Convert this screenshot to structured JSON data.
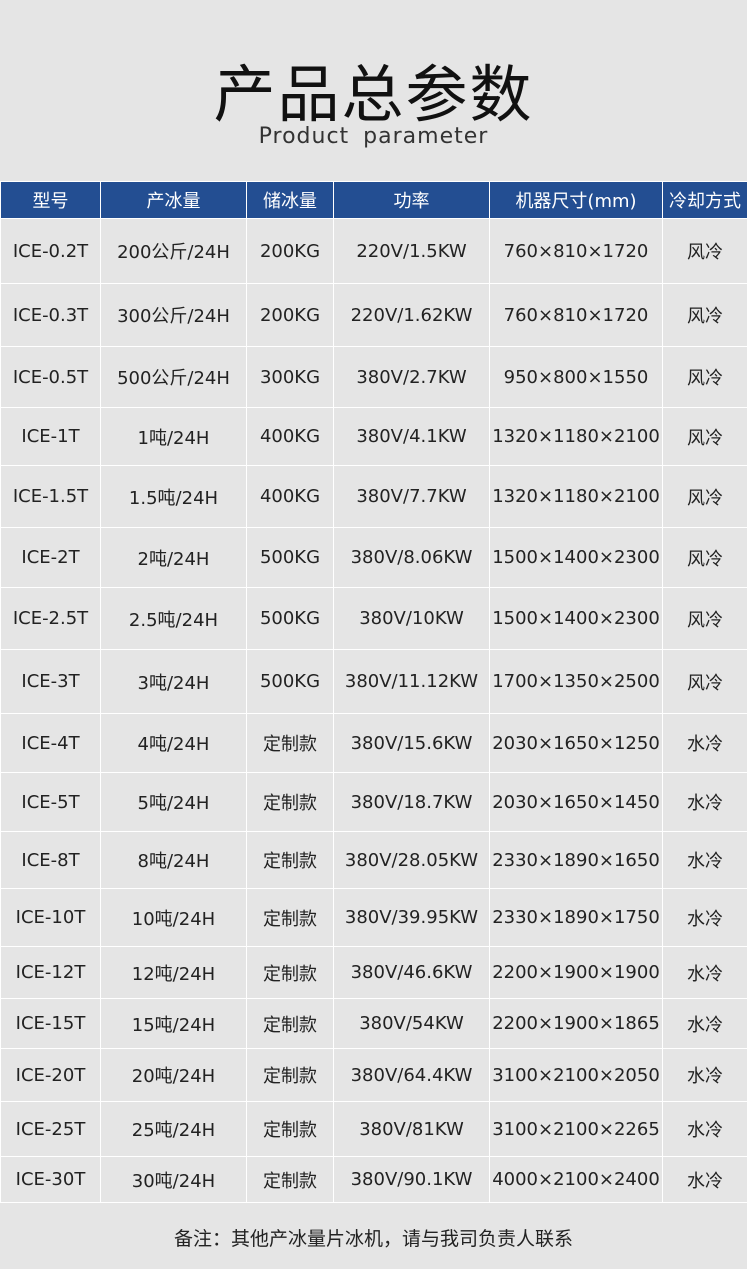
{
  "title": "产品总参数",
  "subtitle": "Product  parameter",
  "colors": {
    "header_bg": "#234e92",
    "page_bg": "#e5e5e5"
  },
  "headers": [
    "型号",
    "产冰量",
    "储冰量",
    "功率",
    "机器尺寸(mm)",
    "冷却方式"
  ],
  "rows": [
    [
      "ICE-0.2T",
      "200公斤/24H",
      "200KG",
      "220V/1.5KW",
      "760×810×1720",
      "风冷"
    ],
    [
      "ICE-0.3T",
      "300公斤/24H",
      "200KG",
      "220V/1.62KW",
      "760×810×1720",
      "风冷"
    ],
    [
      "ICE-0.5T",
      "500公斤/24H",
      "300KG",
      "380V/2.7KW",
      "950×800×1550",
      "风冷"
    ],
    [
      "ICE-1T",
      "1吨/24H",
      "400KG",
      "380V/4.1KW",
      "1320×1180×2100",
      "风冷"
    ],
    [
      "ICE-1.5T",
      "1.5吨/24H",
      "400KG",
      "380V/7.7KW",
      "1320×1180×2100",
      "风冷"
    ],
    [
      "ICE-2T",
      "2吨/24H",
      "500KG",
      "380V/8.06KW",
      "1500×1400×2300",
      "风冷"
    ],
    [
      "ICE-2.5T",
      "2.5吨/24H",
      "500KG",
      "380V/10KW",
      "1500×1400×2300",
      "风冷"
    ],
    [
      "ICE-3T",
      "3吨/24H",
      "500KG",
      "380V/11.12KW",
      "1700×1350×2500",
      "风冷"
    ],
    [
      "ICE-4T",
      "4吨/24H",
      "定制款",
      "380V/15.6KW",
      "2030×1650×1250",
      "水冷"
    ],
    [
      "ICE-5T",
      "5吨/24H",
      "定制款",
      "380V/18.7KW",
      "2030×1650×1450",
      "水冷"
    ],
    [
      "ICE-8T",
      "8吨/24H",
      "定制款",
      "380V/28.05KW",
      "2330×1890×1650",
      "水冷"
    ],
    [
      "ICE-10T",
      "10吨/24H",
      "定制款",
      "380V/39.95KW",
      "2330×1890×1750",
      "水冷"
    ],
    [
      "ICE-12T",
      "12吨/24H",
      "定制款",
      "380V/46.6KW",
      "2200×1900×1900",
      "水冷"
    ],
    [
      "ICE-15T",
      "15吨/24H",
      "定制款",
      "380V/54KW",
      "2200×1900×1865",
      "水冷"
    ],
    [
      "ICE-20T",
      "20吨/24H",
      "定制款",
      "380V/64.4KW",
      "3100×2100×2050",
      "水冷"
    ],
    [
      "ICE-25T",
      "25吨/24H",
      "定制款",
      "380V/81KW",
      "3100×2100×2265",
      "水冷"
    ],
    [
      "ICE-30T",
      "30吨/24H",
      "定制款",
      "380V/90.1KW",
      "4000×2100×2400",
      "水冷"
    ]
  ],
  "note": "备注：其他产冰量片冰机，请与我司负责人联系"
}
